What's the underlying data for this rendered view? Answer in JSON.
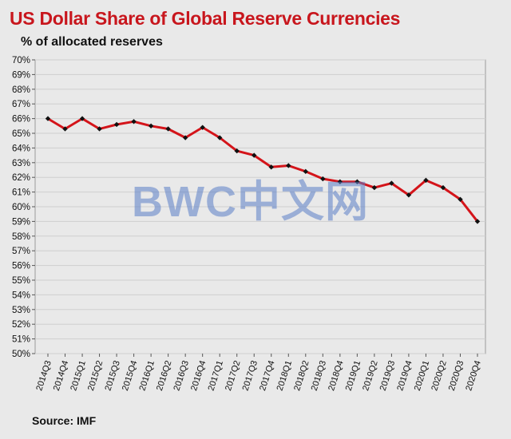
{
  "header": {
    "title": "US Dollar Share of Global Reserve Currencies",
    "subtitle": "% of allocated reserves"
  },
  "footer": {
    "source": "Source: IMF"
  },
  "watermark": {
    "text": "BWC中文网"
  },
  "colors": {
    "line": "#d4141a",
    "marker": "#111111",
    "grid": "#cfcfcf",
    "title": "#c8161d"
  },
  "chart_data": {
    "type": "line",
    "title": "US Dollar Share of Global Reserve Currencies",
    "ylabel": "% of allocated reserves",
    "xlabel": "",
    "ylim": [
      50,
      70
    ],
    "yticks": [
      "70%",
      "69%",
      "68%",
      "67%",
      "66%",
      "65%",
      "64%",
      "63%",
      "62%",
      "61%",
      "60%",
      "59%",
      "58%",
      "57%",
      "56%",
      "55%",
      "54%",
      "53%",
      "52%",
      "51%",
      "50%"
    ],
    "grid": true,
    "categories": [
      "2014Q3",
      "2014Q4",
      "2015Q1",
      "2015Q2",
      "2015Q3",
      "2015Q4",
      "2016Q1",
      "2016Q2",
      "2016Q3",
      "2016Q4",
      "2017Q1",
      "2017Q2",
      "2017Q3",
      "2017Q4",
      "2018Q1",
      "2018Q2",
      "2018Q3",
      "2018Q4",
      "2019Q1",
      "2019Q2",
      "2019Q3",
      "2019Q4",
      "2020Q1",
      "2020Q2",
      "2020Q3",
      "2020Q4"
    ],
    "series": [
      {
        "values": [
          66.0,
          65.3,
          66.0,
          65.3,
          65.6,
          65.8,
          65.5,
          65.3,
          64.7,
          65.4,
          64.7,
          63.8,
          63.5,
          62.7,
          62.8,
          62.4,
          61.9,
          61.7,
          61.7,
          61.3,
          61.6,
          60.8,
          61.8,
          61.3,
          60.5,
          59.0
        ]
      }
    ]
  }
}
